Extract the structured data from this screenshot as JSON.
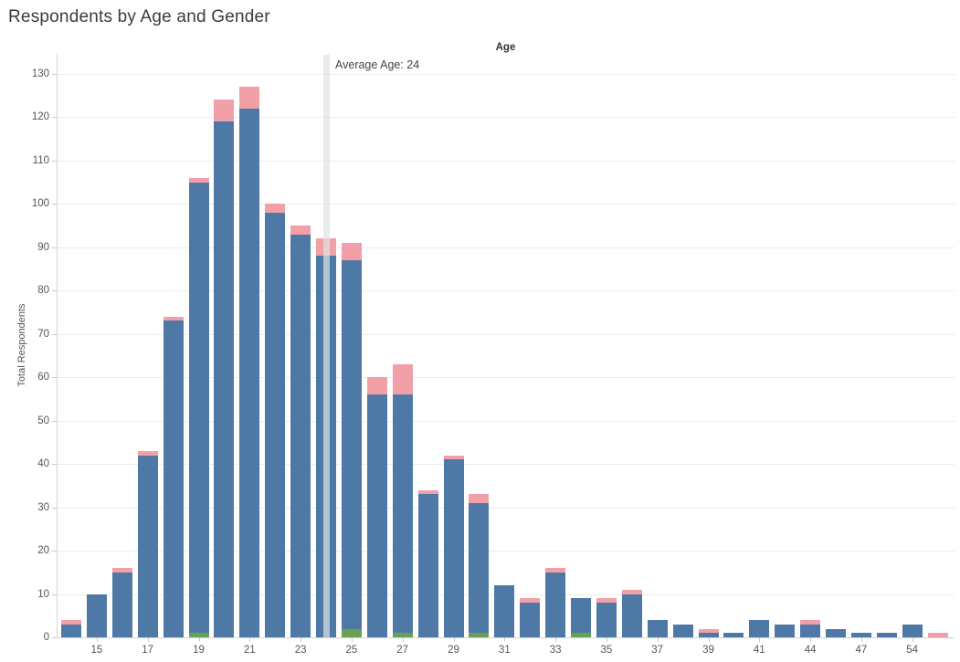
{
  "title": "Respondents by Age and Gender",
  "pane_header": "Age",
  "y_axis": {
    "title": "Total Respondents",
    "ticks": [
      0,
      10,
      20,
      30,
      40,
      50,
      60,
      70,
      80,
      90,
      100,
      110,
      120,
      130
    ]
  },
  "x_axis": {
    "visible_ticks": [
      "15",
      "17",
      "19",
      "21",
      "23",
      "25",
      "27",
      "29",
      "31",
      "33",
      "35",
      "37",
      "39",
      "41",
      "44",
      "47",
      "54"
    ]
  },
  "annotation": {
    "text": "Average Age: 24",
    "value": 24
  },
  "colors": {
    "blue": "#4e79a7",
    "pink": "#f2a0a8",
    "green": "#68a055",
    "reference_band": "rgba(222,226,230,0.7)",
    "gridline": "#ececec",
    "axis_line": "#d4d4d4",
    "text_dark": "#3b3b3b",
    "text_gray": "#555555"
  },
  "chart_data": {
    "type": "bar",
    "stacked": true,
    "title": "Respondents by Age and Gender",
    "xlabel": "Age",
    "ylabel": "Total Respondents",
    "ylim": [
      0,
      134
    ],
    "grid": "horizontal",
    "legend": "none",
    "reference_line": {
      "label": "Average Age: 24",
      "x_category": "24"
    },
    "categories": [
      "14",
      "15",
      "16",
      "17",
      "18",
      "19",
      "20",
      "21",
      "22",
      "23",
      "24",
      "25",
      "26",
      "27",
      "28",
      "29",
      "30",
      "31",
      "32",
      "33",
      "34",
      "35",
      "36",
      "37",
      "38",
      "39",
      "40",
      "41",
      "42",
      "44",
      "45",
      "47",
      "49",
      "54",
      "55"
    ],
    "series": [
      {
        "name": "green-bottom-segment",
        "color": "#68a055",
        "values": [
          0,
          0,
          0,
          0,
          0,
          1,
          0,
          0,
          0,
          0,
          0,
          2,
          0,
          1,
          0,
          0,
          1,
          0,
          0,
          0,
          1,
          0,
          0,
          0,
          0,
          0,
          0,
          0,
          0,
          0,
          0,
          0,
          0,
          0,
          0
        ]
      },
      {
        "name": "blue-middle-segment",
        "color": "#4e79a7",
        "values": [
          3,
          10,
          15,
          42,
          73,
          104,
          119,
          122,
          98,
          93,
          88,
          85,
          56,
          55,
          33,
          41,
          30,
          12,
          8,
          15,
          8,
          8,
          10,
          4,
          3,
          1,
          1,
          4,
          3,
          3,
          2,
          1,
          1,
          3,
          0
        ]
      },
      {
        "name": "pink-top-segment",
        "color": "#f2a0a8",
        "values": [
          1,
          0,
          1,
          1,
          1,
          1,
          5,
          5,
          2,
          2,
          4,
          4,
          4,
          7,
          1,
          1,
          2,
          0,
          1,
          1,
          0,
          1,
          1,
          0,
          0,
          1,
          0,
          0,
          0,
          1,
          0,
          0,
          0,
          0,
          1
        ]
      }
    ],
    "totals": [
      4,
      10,
      16,
      43,
      74,
      106,
      124,
      127,
      100,
      95,
      92,
      91,
      60,
      63,
      34,
      42,
      33,
      12,
      9,
      16,
      9,
      9,
      11,
      4,
      3,
      2,
      1,
      4,
      3,
      4,
      2,
      1,
      1,
      3,
      1
    ]
  }
}
